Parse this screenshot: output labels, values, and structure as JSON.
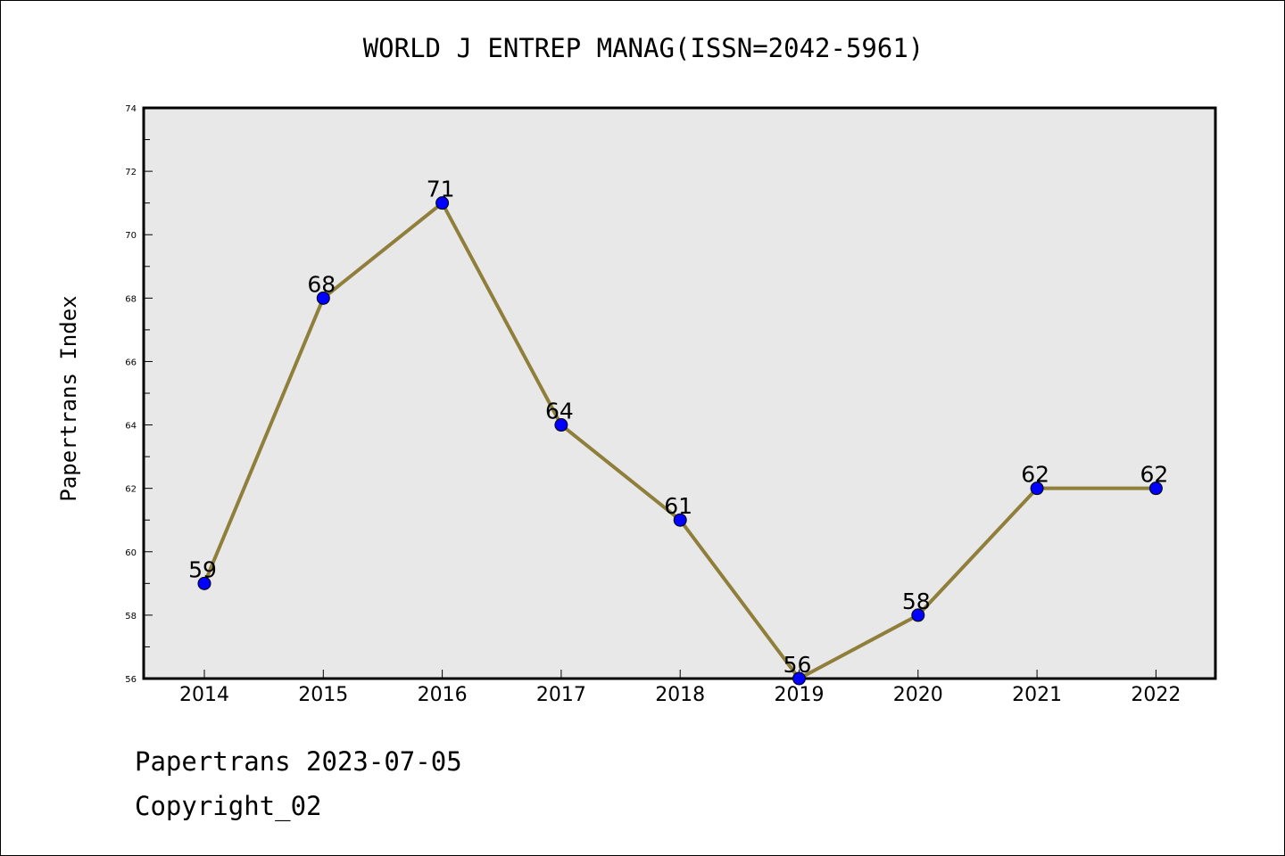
{
  "chart_data": {
    "type": "line",
    "title": "WORLD J ENTREP MANAG(ISSN=2042-5961)",
    "xlabel": "",
    "ylabel": "Papertrans Index",
    "x": [
      "2014",
      "2015",
      "2016",
      "2017",
      "2018",
      "2019",
      "2020",
      "2021",
      "2022"
    ],
    "series": [
      {
        "values": [
          59,
          68,
          71,
          64,
          61,
          56,
          58,
          62,
          62
        ],
        "line_color": "#8f7f3a",
        "marker_color": "#0000ff"
      }
    ],
    "data_labels": [
      "59",
      "68",
      "71",
      "64",
      "61",
      "56",
      "58",
      "62",
      "62"
    ],
    "ylim": [
      56,
      74
    ],
    "yticks": [
      "56",
      "58",
      "60",
      "62",
      "64",
      "66",
      "68",
      "70",
      "72",
      "74"
    ],
    "grid": false,
    "plot_background": "#e8e8e8"
  },
  "footer": {
    "line1": "Papertrans 2023-07-05",
    "line2": "Copyright_02"
  }
}
